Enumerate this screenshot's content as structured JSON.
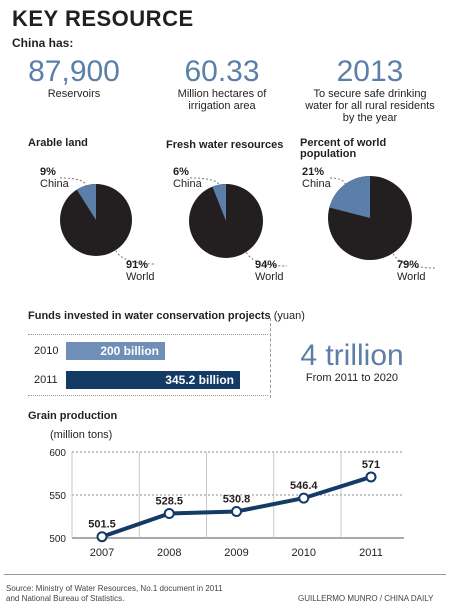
{
  "title": "KEY RESOURCE",
  "intro": "China has:",
  "stats": [
    {
      "value": "87,900",
      "caption": "Reservoirs"
    },
    {
      "value": "60.33",
      "caption": "Million hectares of irrigation area"
    },
    {
      "value": "2013",
      "caption": "To secure safe drinking water for all rural residents by the year"
    }
  ],
  "colors": {
    "accent": "#5b7fa8",
    "dark": "#231f20",
    "navy": "#143a66",
    "bar2010": "#6f8fb8"
  },
  "chart_data": [
    {
      "type": "pie",
      "title": "Arable land",
      "slices": [
        {
          "label": "China",
          "value": 9,
          "display": "9%"
        },
        {
          "label": "World",
          "value": 91,
          "display": "91%"
        }
      ]
    },
    {
      "type": "pie",
      "title": "Fresh water resources",
      "slices": [
        {
          "label": "China",
          "value": 6,
          "display": "6%"
        },
        {
          "label": "World",
          "value": 94,
          "display": "94%"
        }
      ]
    },
    {
      "type": "pie",
      "title": "Percent of world population",
      "slices": [
        {
          "label": "China",
          "value": 21,
          "display": "21%"
        },
        {
          "label": "World",
          "value": 79,
          "display": "79%"
        }
      ]
    },
    {
      "type": "bar",
      "orientation": "horizontal",
      "title": "Funds invested in water conservation projects",
      "unit": "(yuan)",
      "categories": [
        "2010",
        "2011"
      ],
      "values": [
        200,
        345.2
      ],
      "value_labels": [
        "200 billion",
        "345.2 billion"
      ]
    },
    {
      "type": "line",
      "title": "Grain production",
      "ylabel": "(million tons)",
      "x": [
        "2007",
        "2008",
        "2009",
        "2010",
        "2011"
      ],
      "values": [
        501.5,
        528.5,
        530.8,
        546.4,
        571
      ],
      "yticks": [
        500,
        550,
        600
      ],
      "ylim": [
        500,
        600
      ],
      "grid": true
    }
  ],
  "funds_total": {
    "value": "4 trillion",
    "caption": "From 2011 to 2020"
  },
  "footer": {
    "source_line1": "Source: Ministry of Water Resources, No.1 document in 2011",
    "source_line2": "and National Bureau of Statistics.",
    "credit": "GUILLERMO MUNRO / CHINA DAILY"
  }
}
